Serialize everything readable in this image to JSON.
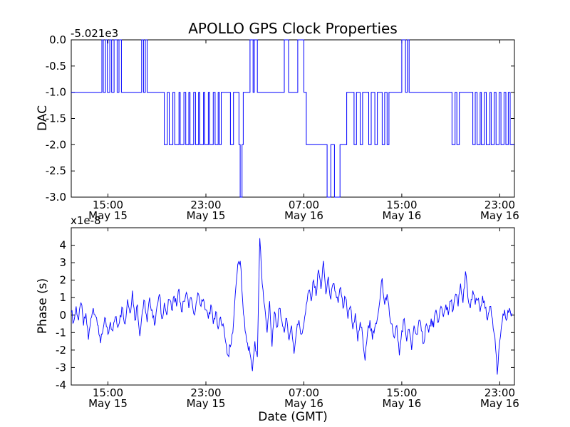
{
  "chart_data": [
    {
      "type": "line",
      "style": "steps-post",
      "title": "APOLLO GPS Clock Properties",
      "ylabel": "DAC",
      "offset_text": "-5.021e3",
      "offset_value": -5021,
      "ylim": [
        -3.0,
        0.0
      ],
      "yticks": [
        "0.0",
        "-0.5",
        "-1.0",
        "-1.5",
        "-2.0",
        "-2.5",
        "-3.0"
      ],
      "xlim_hours": [
        0,
        36.2
      ],
      "xticks_hours": [
        3,
        11,
        19,
        27,
        35
      ],
      "xtick_labels_top": [
        "15:00",
        "23:00",
        "07:00",
        "15:00",
        "23:00"
      ],
      "xtick_labels_bottom": [
        "May 15",
        "May 15",
        "May 16",
        "May 16",
        "May 16"
      ],
      "line_color": "#0000ff",
      "step_points_hours_level": [
        [
          0,
          -1
        ],
        [
          2.5,
          0
        ],
        [
          2.62,
          -1
        ],
        [
          2.8,
          0
        ],
        [
          2.95,
          -1
        ],
        [
          3.15,
          0
        ],
        [
          3.3,
          -1
        ],
        [
          3.5,
          0
        ],
        [
          3.75,
          -1
        ],
        [
          3.9,
          0
        ],
        [
          4.1,
          -1
        ],
        [
          5.75,
          0
        ],
        [
          5.9,
          -1
        ],
        [
          6.05,
          0
        ],
        [
          6.2,
          -1
        ],
        [
          7.6,
          -2
        ],
        [
          7.85,
          -1
        ],
        [
          8.0,
          -2
        ],
        [
          8.3,
          -1
        ],
        [
          8.45,
          -2
        ],
        [
          8.8,
          -1
        ],
        [
          8.9,
          -2
        ],
        [
          9.2,
          -1
        ],
        [
          9.35,
          -2
        ],
        [
          9.6,
          -1
        ],
        [
          9.7,
          -2
        ],
        [
          10.0,
          -1
        ],
        [
          10.15,
          -2
        ],
        [
          10.4,
          -1
        ],
        [
          10.5,
          -2
        ],
        [
          10.8,
          -1
        ],
        [
          10.9,
          -2
        ],
        [
          11.2,
          -1
        ],
        [
          11.3,
          -2
        ],
        [
          11.6,
          -1
        ],
        [
          11.75,
          -2
        ],
        [
          12.0,
          -1
        ],
        [
          12.1,
          -2
        ],
        [
          12.25,
          -1
        ],
        [
          13.0,
          -2
        ],
        [
          13.25,
          -1
        ],
        [
          13.7,
          -2
        ],
        [
          13.8,
          -3
        ],
        [
          13.95,
          -2
        ],
        [
          14.05,
          -1
        ],
        [
          14.6,
          0
        ],
        [
          14.85,
          -1
        ],
        [
          14.95,
          0
        ],
        [
          15.2,
          -1
        ],
        [
          17.4,
          0
        ],
        [
          17.75,
          -1
        ],
        [
          18.5,
          0
        ],
        [
          19.0,
          -1
        ],
        [
          19.2,
          -2
        ],
        [
          20.9,
          -3
        ],
        [
          21.2,
          -2
        ],
        [
          21.5,
          -3
        ],
        [
          21.95,
          -2
        ],
        [
          22.5,
          -1
        ],
        [
          23.1,
          -2
        ],
        [
          23.3,
          -1
        ],
        [
          23.6,
          -2
        ],
        [
          23.8,
          -1
        ],
        [
          24.3,
          -2
        ],
        [
          24.5,
          -1
        ],
        [
          24.8,
          -2
        ],
        [
          25.0,
          -1
        ],
        [
          25.4,
          -2
        ],
        [
          25.6,
          -1
        ],
        [
          25.8,
          -2
        ],
        [
          25.95,
          -1
        ],
        [
          27.0,
          0
        ],
        [
          27.3,
          -1
        ],
        [
          27.45,
          0
        ],
        [
          27.6,
          -1
        ],
        [
          31.1,
          -2
        ],
        [
          31.35,
          -1
        ],
        [
          31.5,
          -2
        ],
        [
          31.7,
          -1
        ],
        [
          32.8,
          -2
        ],
        [
          33.0,
          -1
        ],
        [
          33.15,
          -2
        ],
        [
          33.4,
          -1
        ],
        [
          33.5,
          -2
        ],
        [
          33.75,
          -1
        ],
        [
          33.9,
          -2
        ],
        [
          34.2,
          -1
        ],
        [
          34.3,
          -2
        ],
        [
          34.55,
          -1
        ],
        [
          34.7,
          -2
        ],
        [
          34.95,
          -1
        ],
        [
          35.1,
          -2
        ],
        [
          35.35,
          -1
        ],
        [
          35.5,
          -2
        ],
        [
          35.7,
          -1
        ],
        [
          35.85,
          -2
        ]
      ]
    },
    {
      "type": "line",
      "ylabel": "Phase (s)",
      "multiplier_text": "x1e-8",
      "unit_scale": "1e-8 s",
      "xlabel": "Date (GMT)",
      "ylim": [
        -4,
        5
      ],
      "yticks": [
        "4",
        "3",
        "2",
        "1",
        "0",
        "-1",
        "-2",
        "-3",
        "-4"
      ],
      "x_start_hours": 0,
      "x_step_hours": 0.2,
      "line_color": "#0000ff",
      "noise_amplitude": 0.3,
      "values_1e8": [
        0.2,
        -0.4,
        0.5,
        -0.3,
        0.7,
        -0.6,
        0.1,
        -1.4,
        -0.2,
        0.4,
        -0.1,
        -0.6,
        -1.6,
        -0.8,
        -0.2,
        -1.1,
        -0.4,
        -0.9,
        -0.1,
        -0.7,
        0.0,
        0.4,
        -0.5,
        0.9,
        0.1,
        1.4,
        -0.3,
        0.6,
        -1.2,
        0.2,
        0.8,
        -0.4,
        1.0,
        0.3,
        -0.6,
        0.5,
        1.2,
        -0.2,
        0.7,
        0.0,
        0.9,
        0.3,
        1.1,
        0.5,
        1.5,
        0.2,
        0.8,
        1.3,
        0.4,
        1.0,
        0.1,
        0.7,
        1.2,
        0.5,
        0.9,
        0.3,
        -0.2,
        0.6,
        -0.5,
        0.2,
        -0.8,
        -0.1,
        -0.5,
        -1.5,
        -2.3,
        -1.8,
        -1.0,
        1.2,
        2.9,
        3.1,
        0.8,
        -0.9,
        -1.6,
        -2.2,
        -3.2,
        -1.5,
        -2.4,
        4.4,
        1.8,
        0.5,
        -1.0,
        0.8,
        -1.8,
        0.2,
        -0.7,
        0.4,
        -0.3,
        -1.0,
        -0.2,
        -1.4,
        -0.6,
        -2.2,
        -0.9,
        -0.3,
        -1.1,
        -0.5,
        0.6,
        1.4,
        0.8,
        2.0,
        1.1,
        2.6,
        1.5,
        3.1,
        1.2,
        2.2,
        0.9,
        1.8,
        1.3,
        0.7,
        1.6,
        0.4,
        1.0,
        -0.2,
        0.5,
        -0.8,
        0.1,
        -1.5,
        -0.4,
        -1.2,
        -2.6,
        -1.0,
        -0.3,
        -1.4,
        -0.7,
        -0.2,
        0.8,
        2.1,
        0.6,
        1.2,
        0.0,
        -0.5,
        -1.3,
        -0.6,
        -2.3,
        -0.9,
        -0.2,
        -1.5,
        -0.8,
        -2.0,
        -0.6,
        -1.1,
        -0.3,
        -0.9,
        -1.6,
        -0.5,
        -1.0,
        -0.2,
        -0.7,
        0.3,
        -0.4,
        0.5,
        -0.1,
        0.6,
        0.0,
        0.8,
        0.3,
        1.2,
        0.5,
        1.8,
        0.7,
        2.5,
        1.0,
        0.4,
        1.4,
        0.6,
        0.9,
        0.2,
        1.1,
        0.4,
        -0.3,
        0.5,
        -0.2,
        -1.2,
        -3.4,
        -1.5,
        -0.4,
        0.3,
        -0.2,
        0.4,
        0.1
      ]
    }
  ]
}
